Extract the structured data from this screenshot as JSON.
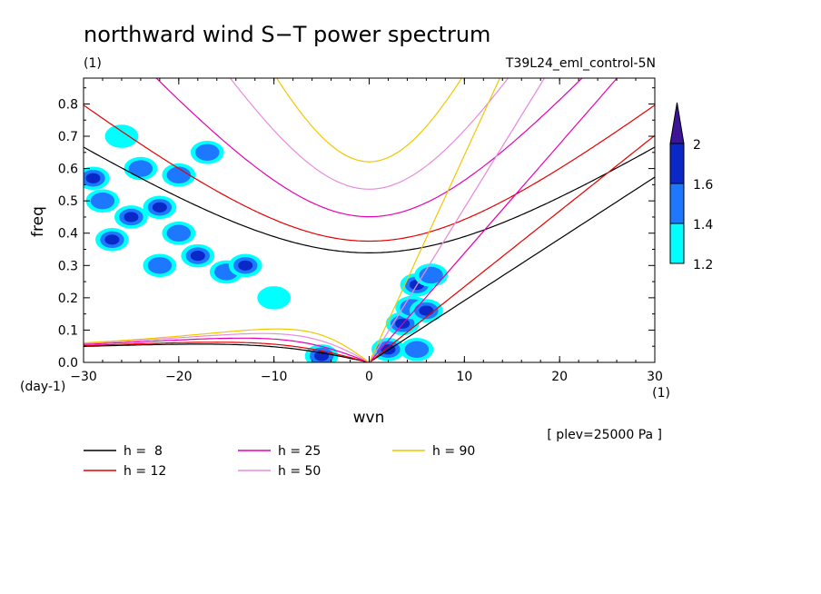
{
  "chart_data": {
    "type": "contour",
    "title": "northward wind S−T power spectrum",
    "units_label": "(1)",
    "experiment": "T39L24_eml_control-5N",
    "xlabel": "wvn",
    "ylabel": "freq",
    "x_units": "(1)",
    "y_units": "(day-1)",
    "xlim": [
      -30,
      30
    ],
    "ylim": [
      0,
      0.88
    ],
    "x_ticks": [
      "−30",
      "−20",
      "−10",
      "0",
      "10",
      "20",
      "30"
    ],
    "x_tick_values": [
      -30,
      -20,
      -10,
      0,
      10,
      20,
      30
    ],
    "y_ticks": [
      "0.0",
      "0.1",
      "0.2",
      "0.3",
      "0.4",
      "0.5",
      "0.6",
      "0.7",
      "0.8"
    ],
    "y_tick_values": [
      0,
      0.1,
      0.2,
      0.3,
      0.4,
      0.5,
      0.6,
      0.7,
      0.8
    ],
    "annotation": "[ plev=25000 Pa ]",
    "colorbar": {
      "levels": [
        "1.2",
        "1.4",
        "1.6",
        "2"
      ],
      "colors": [
        "#00ffff",
        "#1e78ff",
        "#0a28c8",
        "#3c1496"
      ]
    },
    "dispersion_curves": [
      {
        "label": "h =  8",
        "h": 8,
        "color": "#000000"
      },
      {
        "label": "h = 12",
        "h": 12,
        "color": "#e60000"
      },
      {
        "label": "h = 25",
        "h": 25,
        "color": "#e600b4"
      },
      {
        "label": "h = 50",
        "h": 50,
        "color": "#e68cdc"
      },
      {
        "label": "h = 90",
        "h": 90,
        "color": "#f0c800"
      }
    ],
    "power_blobs": [
      {
        "x": -29,
        "y": 0.57,
        "level": 2
      },
      {
        "x": -28,
        "y": 0.5,
        "level": 1
      },
      {
        "x": -26,
        "y": 0.7,
        "level": 0
      },
      {
        "x": -24,
        "y": 0.6,
        "level": 1
      },
      {
        "x": -22,
        "y": 0.48,
        "level": 2
      },
      {
        "x": -25,
        "y": 0.45,
        "level": 2
      },
      {
        "x": -20,
        "y": 0.4,
        "level": 1
      },
      {
        "x": -18,
        "y": 0.33,
        "level": 2
      },
      {
        "x": -27,
        "y": 0.38,
        "level": 2
      },
      {
        "x": -15,
        "y": 0.28,
        "level": 1
      },
      {
        "x": -13,
        "y": 0.3,
        "level": 2
      },
      {
        "x": -22,
        "y": 0.3,
        "level": 1
      },
      {
        "x": -10,
        "y": 0.2,
        "level": 0
      },
      {
        "x": -17,
        "y": 0.65,
        "level": 1
      },
      {
        "x": -20,
        "y": 0.58,
        "level": 1
      },
      {
        "x": -5,
        "y": 0.02,
        "level": 2
      },
      {
        "x": 2,
        "y": 0.04,
        "level": 2
      },
      {
        "x": 3.5,
        "y": 0.12,
        "level": 2
      },
      {
        "x": 4.5,
        "y": 0.17,
        "level": 1
      },
      {
        "x": 5,
        "y": 0.24,
        "level": 2
      },
      {
        "x": 6,
        "y": 0.16,
        "level": 2
      },
      {
        "x": 5,
        "y": 0.04,
        "level": 1
      },
      {
        "x": 6.5,
        "y": 0.27,
        "level": 1
      }
    ]
  }
}
